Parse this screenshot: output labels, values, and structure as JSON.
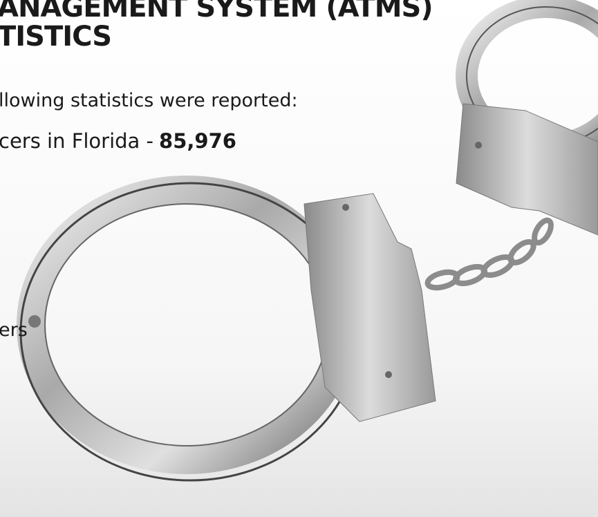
{
  "title": {
    "line1": "ANAGEMENT SYSTEM (ATMS)",
    "line2": "TISTICS"
  },
  "intro": "llowing statistics were reported:",
  "stat": {
    "label": "cers in Florida -",
    "value": "85,976"
  },
  "fragment": "ers"
}
